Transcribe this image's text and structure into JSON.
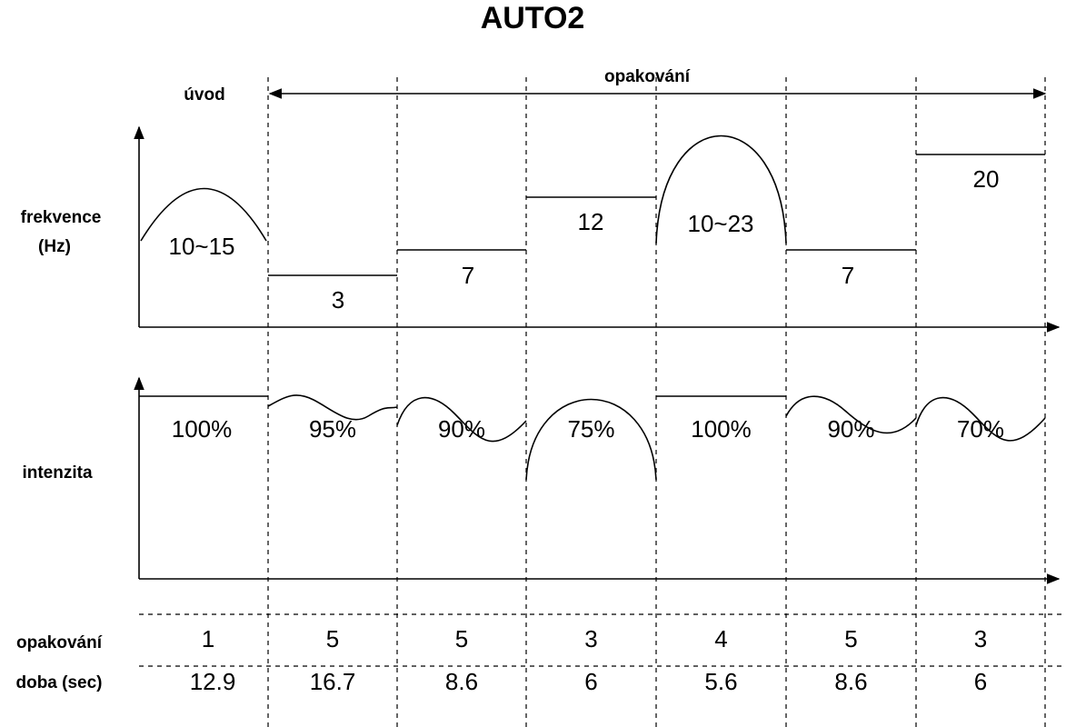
{
  "title": "AUTO2",
  "header": {
    "intro": "úvod",
    "repeat": "opakování"
  },
  "rows": {
    "frequency": "frekvence",
    "frequency_unit": "(Hz)",
    "intensity": "intenzita",
    "repetitions": "opakování",
    "duration": "doba (sec)"
  },
  "segments": [
    {
      "frequency": "10~15",
      "intensity": "100%",
      "repetitions": "1",
      "duration": "12.9"
    },
    {
      "frequency": "3",
      "intensity": "95%",
      "repetitions": "5",
      "duration": "16.7"
    },
    {
      "frequency": "7",
      "intensity": "90%",
      "repetitions": "5",
      "duration": "8.6"
    },
    {
      "frequency": "12",
      "intensity": "75%",
      "repetitions": "3",
      "duration": "6"
    },
    {
      "frequency": "10~23",
      "intensity": "100%",
      "repetitions": "4",
      "duration": "5.6"
    },
    {
      "frequency": "7",
      "intensity": "90%",
      "repetitions": "5",
      "duration": "8.6"
    },
    {
      "frequency": "20",
      "intensity": "70%",
      "repetitions": "3",
      "duration": "6"
    }
  ]
}
